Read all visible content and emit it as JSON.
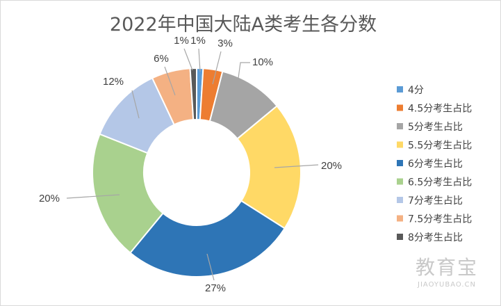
{
  "watermark": {
    "main": "教育宝",
    "sub": "JIAOYUBAO.CN"
  },
  "chart_data": {
    "type": "donut",
    "title": "2022年中国大陆A类考生各分数",
    "legend_position": "right",
    "series": [
      {
        "name": "4分",
        "value": 1,
        "label": "1%",
        "color": "#5B9BD5"
      },
      {
        "name": "4.5分考生占比",
        "value": 3,
        "label": "3%",
        "color": "#ED7D31"
      },
      {
        "name": "5分考生占比",
        "value": 10,
        "label": "10%",
        "color": "#A5A5A5"
      },
      {
        "name": "5.5分考生占比",
        "value": 20,
        "label": "20%",
        "color": "#FFD966"
      },
      {
        "name": "6分考生占比",
        "value": 27,
        "label": "27%",
        "color": "#2E75B6"
      },
      {
        "name": "6.5分考生占比",
        "value": 20,
        "label": "20%",
        "color": "#A9D18E"
      },
      {
        "name": "7分考生占比",
        "value": 12,
        "label": "12%",
        "color": "#B4C7E7"
      },
      {
        "name": "7.5分考生占比",
        "value": 6,
        "label": "6%",
        "color": "#F4B183"
      },
      {
        "name": "8分考生占比",
        "value": 1,
        "label": "1%",
        "color": "#595959"
      }
    ]
  }
}
